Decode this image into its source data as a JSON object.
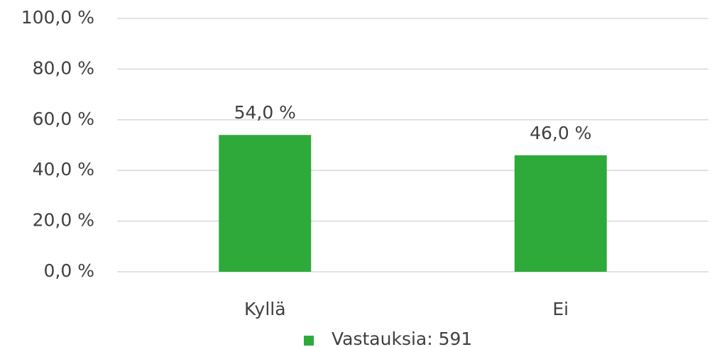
{
  "chart_data": {
    "type": "bar",
    "categories": [
      "Kyllä",
      "Ei"
    ],
    "series": [
      {
        "name": "Vastauksia: 591",
        "color": "#2eaa3b",
        "values": [
          54,
          46
        ],
        "value_labels": [
          "54,0 %",
          "46,0 %"
        ]
      }
    ],
    "ylim": [
      0,
      100
    ],
    "yticks": [
      {
        "value": 0,
        "label": "0,0 %"
      },
      {
        "value": 20,
        "label": "20,0 %"
      },
      {
        "value": 40,
        "label": "40,0 %"
      },
      {
        "value": 60,
        "label": "60,0 %"
      },
      {
        "value": 80,
        "label": "80,0 %"
      },
      {
        "value": 100,
        "label": "100,0 %"
      }
    ],
    "grid": true,
    "legend": "bottom"
  }
}
